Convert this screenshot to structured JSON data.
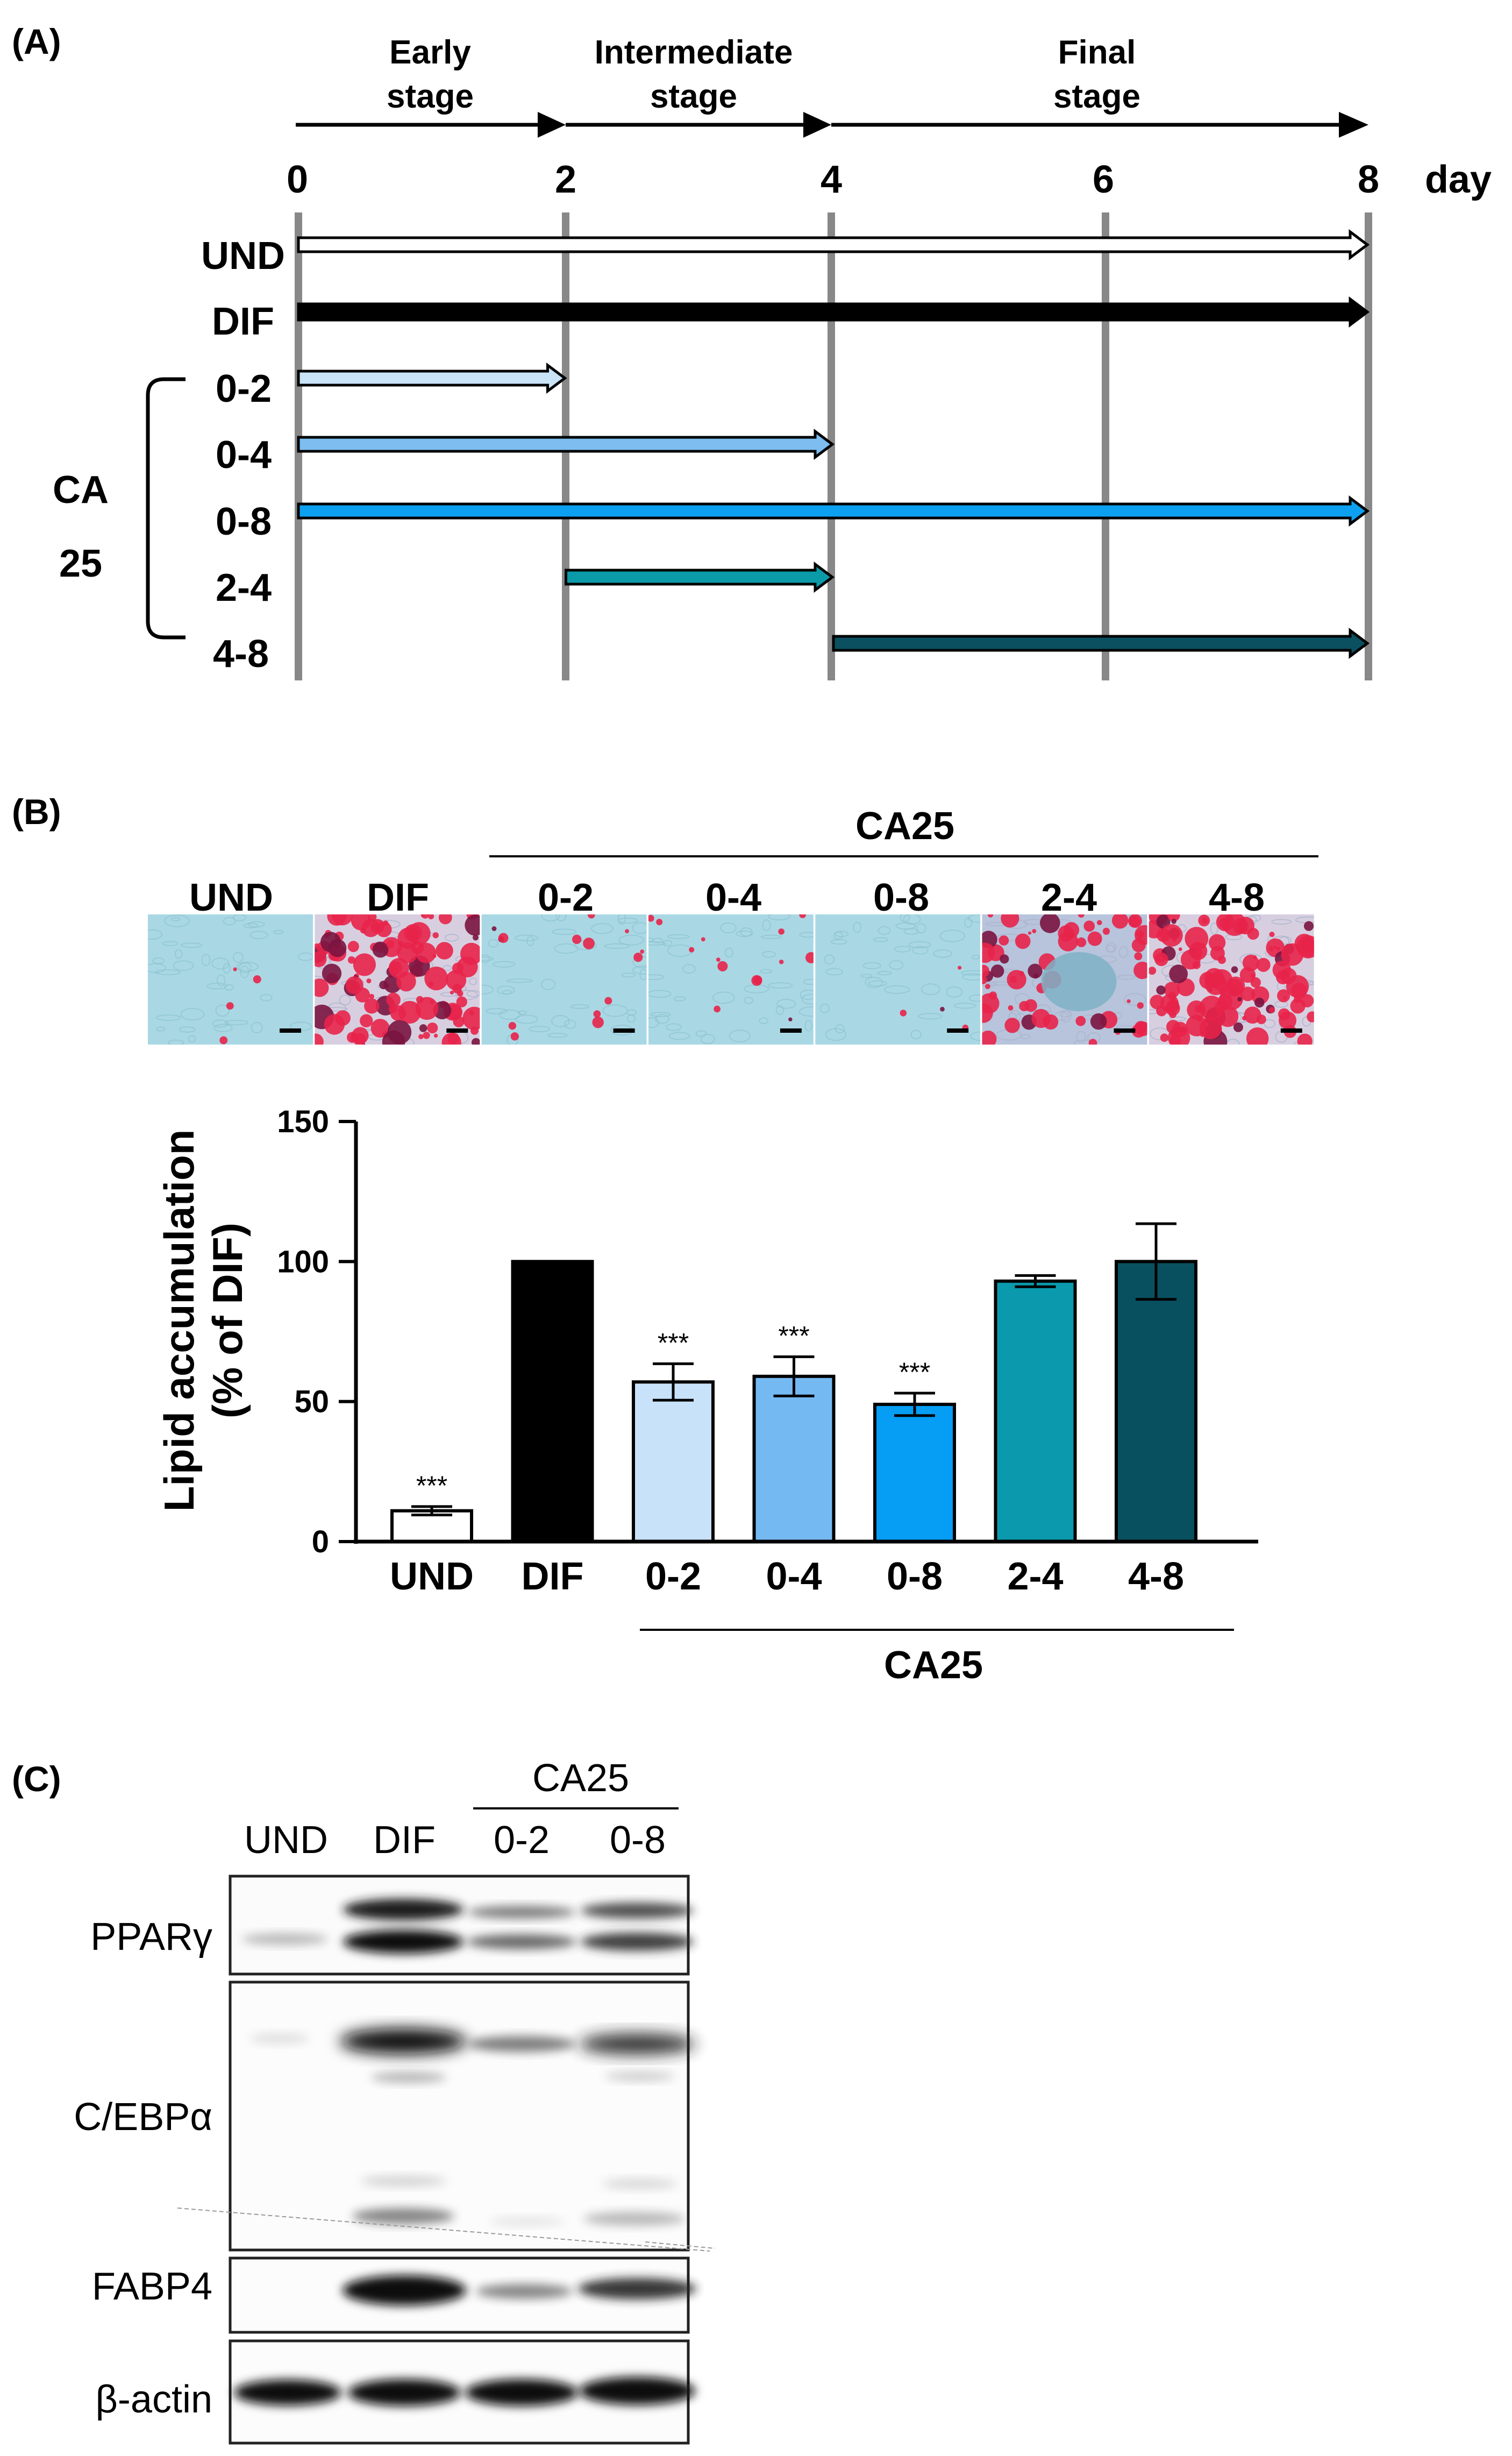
{
  "panel_a": {
    "label": "(A)",
    "stages": [
      {
        "line1": "Early",
        "line2": "stage"
      },
      {
        "line1": "Intermediate",
        "line2": "stage"
      },
      {
        "line1": "Final",
        "line2": "stage"
      }
    ],
    "days": [
      "0",
      "2",
      "4",
      "6",
      "8"
    ],
    "day_unit": "day",
    "groups": [
      {
        "label": "UND",
        "start": 0,
        "end": 8,
        "fill": "#ffffff",
        "bold_bar": false
      },
      {
        "label": "DIF",
        "start": 0,
        "end": 8,
        "fill": "#000000",
        "bold_bar": true
      },
      {
        "label": "0-2",
        "start": 0,
        "end": 2,
        "fill": "#c9e3f7"
      },
      {
        "label": "0-4",
        "start": 0,
        "end": 4,
        "fill": "#7dbdf0"
      },
      {
        "label": "0-8",
        "start": 0,
        "end": 8,
        "fill": "#0ea0f0"
      },
      {
        "label": "2-4",
        "start": 2,
        "end": 4,
        "fill": "#0b9aa8"
      },
      {
        "label": "4-8",
        "start": 4,
        "end": 8,
        "fill": "#0b5060"
      }
    ],
    "bracket_label_1": "CA",
    "bracket_label_2": "25"
  },
  "panel_b": {
    "label": "(B)",
    "header": "CA25",
    "images": [
      {
        "label": "UND",
        "tone": "blue"
      },
      {
        "label": "DIF",
        "tone": "red-dense"
      },
      {
        "label": "0-2",
        "tone": "blue-sparse"
      },
      {
        "label": "0-4",
        "tone": "blue-sparse"
      },
      {
        "label": "0-8",
        "tone": "blue"
      },
      {
        "label": "2-4",
        "tone": "red-mixed"
      },
      {
        "label": "4-8",
        "tone": "red-dense"
      }
    ],
    "chart_data": {
      "type": "bar",
      "title": "",
      "ylabel_line1": "Lipid accumulation",
      "ylabel_line2": "(% of DIF)",
      "xlabel": "CA25",
      "ylim": [
        0,
        150
      ],
      "yticks": [
        "0",
        "50",
        "100",
        "150"
      ],
      "categories": [
        "UND",
        "DIF",
        "0-2",
        "0-4",
        "0-8",
        "2-4",
        "4-8"
      ],
      "values": [
        11,
        100,
        57,
        59,
        49,
        93,
        100
      ],
      "errors": [
        1.5,
        0,
        6.5,
        7,
        4,
        2,
        13.5
      ],
      "significance": [
        "***",
        "",
        "***",
        "***",
        "***",
        "",
        ""
      ],
      "colors": [
        "#ffffff",
        "#000000",
        "#c8e2fa",
        "#75b9f3",
        "#069df5",
        "#0b99ad",
        "#08505f"
      ]
    }
  },
  "panel_c": {
    "label": "(C)",
    "header": "CA25",
    "lanes": [
      "UND",
      "DIF",
      "0-2",
      "0-8"
    ],
    "blots": [
      {
        "name": "PPARγ"
      },
      {
        "name": "C/EBPα"
      },
      {
        "name": "FABP4"
      },
      {
        "name": "β-actin"
      }
    ]
  }
}
